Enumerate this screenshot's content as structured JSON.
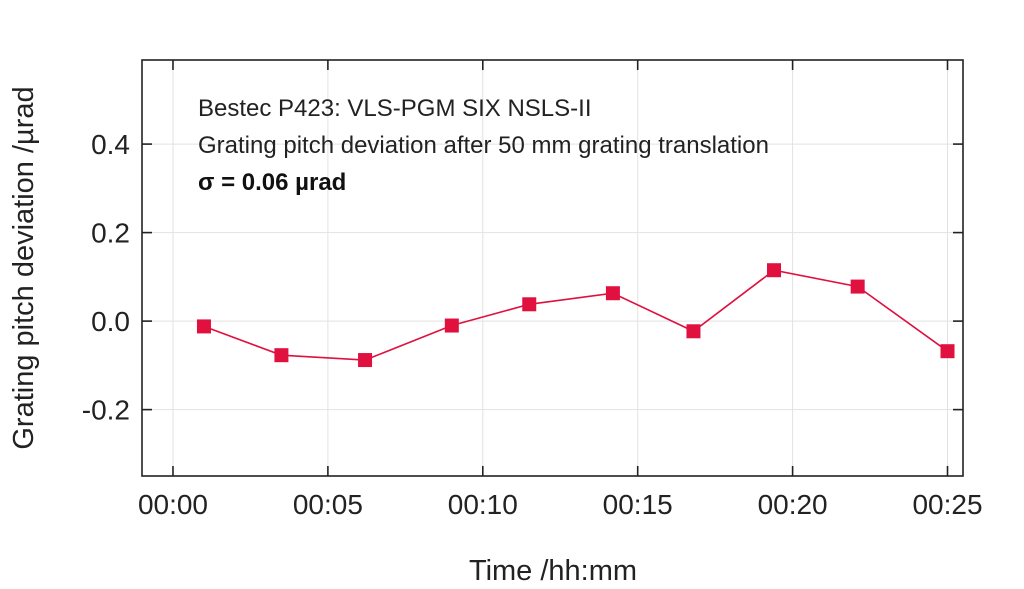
{
  "chart_data": {
    "type": "line",
    "x_tick_labels": [
      "00:00",
      "00:05",
      "00:10",
      "00:15",
      "00:20",
      "00:25"
    ],
    "x_tick_values": [
      0,
      5,
      10,
      15,
      20,
      25
    ],
    "y_tick_labels": [
      "-0.2",
      "0.0",
      "0.2",
      "0.4"
    ],
    "y_tick_values": [
      -0.2,
      0.0,
      0.2,
      0.4
    ],
    "xlim": [
      "-00:01",
      "00:25.5"
    ],
    "ylim": [
      -0.35,
      0.59
    ],
    "xlabel": "Time /hh:mm",
    "ylabel": "Grating pitch deviation /µrad",
    "grid": true,
    "annotations": [
      "Bestec P423: VLS-PGM SIX NSLS-II",
      "Grating pitch deviation after 50 mm grating translation",
      "σ  = 0.06 µrad"
    ],
    "series": [
      {
        "color": "#e0103f",
        "marker": "square",
        "points": [
          {
            "x": "00:01",
            "y": -0.012
          },
          {
            "x": "00:03.5",
            "y": -0.077
          },
          {
            "x": "00:06.2",
            "y": -0.088
          },
          {
            "x": "00:09",
            "y": -0.01
          },
          {
            "x": "00:11.5",
            "y": 0.038
          },
          {
            "x": "00:14.2",
            "y": 0.063
          },
          {
            "x": "00:16.8",
            "y": -0.023
          },
          {
            "x": "00:19.4",
            "y": 0.115
          },
          {
            "x": "00:22.1",
            "y": 0.078
          },
          {
            "x": "00:25",
            "y": -0.068
          }
        ]
      }
    ]
  }
}
